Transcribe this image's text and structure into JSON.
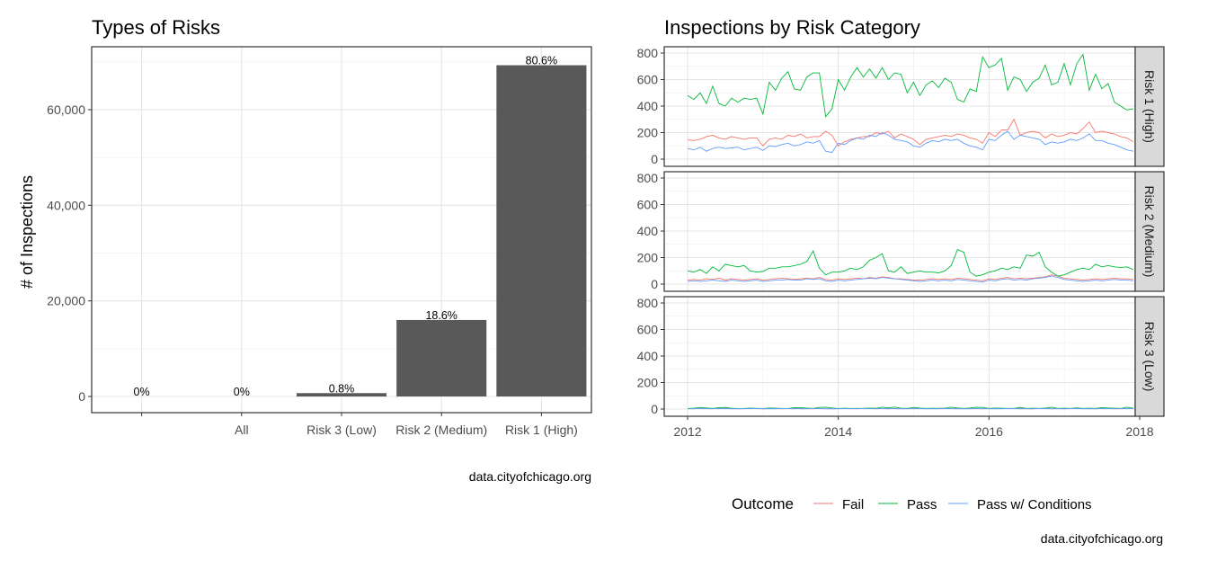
{
  "chart_data": [
    {
      "type": "bar",
      "title": "Types of Risks",
      "xlabel": "",
      "ylabel": "# of Inspections",
      "caption": "data.cityofchicago.org",
      "ylim": [
        0,
        72000
      ],
      "yticks": [
        0,
        20000,
        40000,
        60000
      ],
      "ytick_labels": [
        "0",
        "20,000",
        "40,000",
        "60,000"
      ],
      "categories": [
        "",
        "All",
        "Risk 3 (Low)",
        "Risk 2 (Medium)",
        "Risk 1 (High)"
      ],
      "values": [
        0,
        0,
        700,
        16000,
        69300
      ],
      "data_labels": [
        "0%",
        "0%",
        "0.8%",
        "18.6%",
        "80.6%"
      ],
      "bar_color": "#595959",
      "grid": true
    },
    {
      "type": "line",
      "title": "Inspections by Risk Category",
      "caption": "data.cityofchicago.org",
      "xlim": [
        2011.9,
        2018.3
      ],
      "xticks": [
        2012,
        2014,
        2016,
        2018
      ],
      "xtick_labels": [
        "2012",
        "2014",
        "2016",
        "2018"
      ],
      "ylim": [
        -20,
        820
      ],
      "yticks": [
        0,
        200,
        400,
        600,
        800
      ],
      "ytick_labels": [
        "0",
        "200",
        "400",
        "600",
        "800"
      ],
      "legend": {
        "title": "Outcome",
        "position": "bottom",
        "entries": [
          {
            "label": "Fail",
            "color": "#F8766D"
          },
          {
            "label": "Pass",
            "color": "#00BA38"
          },
          {
            "label": "Pass w/ Conditions",
            "color": "#619CFF"
          }
        ]
      },
      "x_start": 2012.0,
      "x_step": 0.0833,
      "panels": [
        {
          "strip": "Risk 1 (High)",
          "series": [
            {
              "name": "Fail",
              "color": "#F8766D",
              "values": [
                145,
                140,
                150,
                170,
                180,
                160,
                150,
                170,
                160,
                150,
                160,
                160,
                100,
                150,
                160,
                150,
                180,
                170,
                190,
                160,
                170,
                170,
                210,
                180,
                100,
                130,
                150,
                160,
                170,
                170,
                200,
                190,
                210,
                160,
                190,
                170,
                150,
                110,
                150,
                160,
                170,
                180,
                170,
                190,
                180,
                160,
                150,
                120,
                200,
                170,
                220,
                220,
                300,
                180,
                200,
                210,
                200,
                160,
                190,
                170,
                180,
                200,
                190,
                230,
                280,
                200,
                210,
                200,
                190,
                170,
                160,
                130
              ]
            },
            {
              "name": "Pass",
              "color": "#00BA38",
              "values": [
                480,
                450,
                500,
                420,
                550,
                420,
                400,
                460,
                430,
                460,
                450,
                460,
                340,
                580,
                520,
                610,
                660,
                530,
                520,
                620,
                650,
                650,
                320,
                380,
                600,
                520,
                620,
                690,
                620,
                680,
                610,
                690,
                600,
                650,
                640,
                500,
                580,
                480,
                560,
                590,
                540,
                610,
                580,
                450,
                430,
                530,
                510,
                770,
                690,
                710,
                760,
                520,
                620,
                600,
                510,
                580,
                610,
                710,
                560,
                580,
                720,
                560,
                720,
                790,
                520,
                640,
                530,
                570,
                430,
                400,
                370,
                380
              ]
            },
            {
              "name": "Pass w/ Conditions",
              "color": "#619CFF",
              "values": [
                80,
                70,
                90,
                60,
                80,
                90,
                80,
                85,
                90,
                70,
                80,
                90,
                65,
                100,
                95,
                110,
                120,
                100,
                110,
                130,
                120,
                140,
                60,
                50,
                120,
                110,
                140,
                160,
                150,
                180,
                170,
                200,
                180,
                150,
                140,
                130,
                100,
                90,
                120,
                140,
                130,
                150,
                140,
                150,
                120,
                100,
                90,
                70,
                150,
                140,
                180,
                210,
                150,
                180,
                170,
                160,
                150,
                110,
                130,
                120,
                130,
                150,
                140,
                160,
                190,
                140,
                140,
                120,
                110,
                90,
                70,
                60
              ]
            }
          ]
        },
        {
          "strip": "Risk 2 (Medium)",
          "series": [
            {
              "name": "Fail",
              "color": "#F8766D",
              "values": [
                30,
                35,
                30,
                40,
                35,
                45,
                30,
                40,
                35,
                30,
                35,
                40,
                30,
                35,
                40,
                45,
                40,
                35,
                40,
                45,
                40,
                50,
                35,
                30,
                40,
                35,
                40,
                45,
                40,
                50,
                45,
                55,
                50,
                40,
                40,
                35,
                30,
                30,
                35,
                40,
                35,
                40,
                35,
                45,
                40,
                35,
                30,
                25,
                40,
                35,
                45,
                50,
                40,
                45,
                40,
                45,
                50,
                55,
                70,
                60,
                45,
                40,
                35,
                30,
                35,
                40,
                35,
                40,
                45,
                40,
                40,
                35
              ]
            },
            {
              "name": "Pass",
              "color": "#00BA38",
              "values": [
                100,
                90,
                110,
                80,
                130,
                100,
                150,
                140,
                130,
                140,
                100,
                90,
                95,
                120,
                120,
                130,
                130,
                140,
                150,
                170,
                250,
                120,
                70,
                90,
                90,
                100,
                120,
                110,
                130,
                180,
                200,
                230,
                100,
                90,
                130,
                80,
                90,
                100,
                90,
                90,
                85,
                100,
                140,
                260,
                240,
                90,
                60,
                70,
                90,
                100,
                120,
                110,
                130,
                120,
                220,
                210,
                240,
                130,
                90,
                60,
                70,
                90,
                110,
                120,
                110,
                150,
                130,
                140,
                130,
                125,
                130,
                110
              ]
            },
            {
              "name": "Pass w/ Conditions",
              "color": "#619CFF",
              "values": [
                20,
                25,
                20,
                25,
                30,
                25,
                20,
                30,
                25,
                20,
                25,
                30,
                20,
                25,
                30,
                30,
                35,
                30,
                30,
                40,
                35,
                40,
                25,
                20,
                30,
                25,
                30,
                35,
                40,
                45,
                40,
                50,
                45,
                40,
                35,
                30,
                25,
                20,
                25,
                30,
                25,
                30,
                25,
                35,
                30,
                25,
                20,
                15,
                30,
                25,
                35,
                40,
                30,
                35,
                30,
                40,
                45,
                50,
                60,
                50,
                35,
                30,
                25,
                20,
                25,
                30,
                25,
                30,
                35,
                30,
                30,
                25
              ]
            }
          ]
        },
        {
          "strip": "Risk 3 (Low)",
          "series": [
            {
              "name": "Fail",
              "color": "#F8766D",
              "values": [
                3,
                2,
                5,
                3,
                4,
                2,
                6,
                3,
                2,
                4,
                3,
                5,
                2,
                3,
                4,
                2,
                5,
                3,
                4,
                3,
                2,
                5,
                3,
                2,
                4,
                3,
                2,
                5,
                3,
                4,
                6,
                3,
                2,
                4,
                3,
                5,
                2,
                3,
                4,
                3,
                5,
                6,
                3,
                4,
                2,
                5,
                3,
                2,
                4,
                3,
                5,
                3,
                4,
                6,
                3,
                2,
                4,
                5,
                3,
                4,
                2,
                3,
                5,
                4,
                3,
                2,
                4,
                5,
                3,
                2,
                4,
                3
              ]
            },
            {
              "name": "Pass",
              "color": "#00BA38",
              "values": [
                4,
                6,
                12,
                8,
                5,
                10,
                12,
                6,
                4,
                5,
                7,
                5,
                3,
                8,
                6,
                5,
                4,
                10,
                11,
                7,
                5,
                12,
                14,
                8,
                4,
                6,
                5,
                5,
                5,
                7,
                5,
                14,
                9,
                15,
                6,
                5,
                12,
                7,
                5,
                6,
                5,
                6,
                14,
                8,
                5,
                8,
                13,
                12,
                5,
                7,
                6,
                5,
                5,
                12,
                5,
                6,
                5,
                7,
                14,
                5,
                6,
                5,
                9,
                5,
                6,
                5,
                10,
                8,
                6,
                5,
                14,
                6
              ]
            },
            {
              "name": "Pass w/ Conditions",
              "color": "#619CFF",
              "values": [
                2,
                3,
                5,
                3,
                2,
                4,
                3,
                2,
                3,
                2,
                4,
                3,
                2,
                3,
                2,
                4,
                3,
                2,
                3,
                2,
                4,
                3,
                2,
                3,
                2,
                4,
                3,
                2,
                5,
                3,
                2,
                3,
                4,
                2,
                3,
                2,
                4,
                3,
                2,
                3,
                2,
                4,
                3,
                2,
                3,
                2,
                4,
                3,
                2,
                3,
                2,
                4,
                3,
                2,
                3,
                2,
                4,
                3,
                2,
                3,
                2,
                4,
                3,
                2,
                3,
                2,
                4,
                3,
                2,
                3,
                4,
                3
              ]
            }
          ]
        }
      ],
      "grid": true
    }
  ]
}
